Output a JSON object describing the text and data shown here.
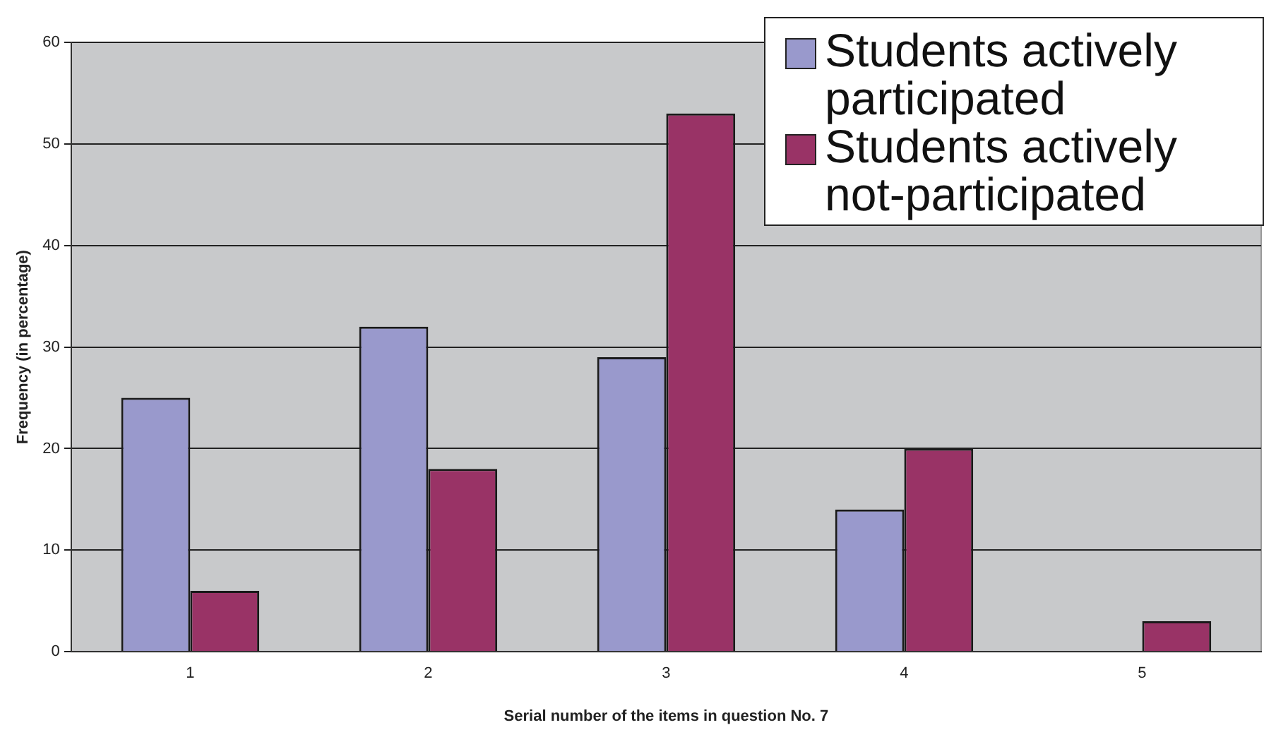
{
  "chart_data": {
    "type": "bar",
    "xlabel": "Serial number of the items in question No. 7",
    "ylabel": "Frequency (in percentage)",
    "categories": [
      "1",
      "2",
      "3",
      "4",
      "5"
    ],
    "series": [
      {
        "name": "Students actively participated",
        "color": "#9999cc",
        "values": [
          25,
          32,
          29,
          14,
          0
        ]
      },
      {
        "name": "Students actively not-participated",
        "color": "#993366",
        "values": [
          6,
          18,
          53,
          20,
          3
        ]
      }
    ],
    "ylim": [
      0,
      60
    ],
    "yticks": [
      0,
      10,
      20,
      30,
      40,
      50,
      60
    ],
    "grid": "y",
    "legend": "top right"
  }
}
